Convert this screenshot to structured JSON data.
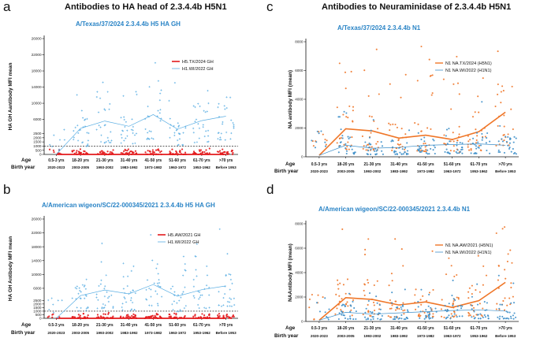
{
  "figure": {
    "heading_left": "Antibodies to HA head of 2.3.4.4b H5N1",
    "heading_right": "Antibodies to  Neuraminidase of 2.3.4.4b H5N1",
    "row_label_age": "Age",
    "row_label_birth": "Birth year",
    "age_groups": [
      "0.5-3 yrs",
      "18-20 yrs",
      "21-30 yrs",
      "31-40 yrs",
      "41-50 yrs",
      "51-60 yrs",
      "61-70 yrs",
      ">70 yrs"
    ],
    "birth_years": [
      "2020-2023",
      "2003-2005",
      "1993-2002",
      "1983-1992",
      "1973-1982",
      "1963-1972",
      "1953-1962",
      "Before 1953"
    ]
  },
  "colors": {
    "red": "#e31a1c",
    "blue": "#5aaee3",
    "orange": "#ef7628",
    "steel": "#3d8fc9",
    "dashed": "#000000"
  },
  "chart_data": [
    {
      "panel": "a",
      "type": "scatter",
      "title": "A/Texas/37/2024 2.3.4.4b H5 HA GH",
      "ylabel": "HA GH Aantibody MFI mean",
      "ytick_labels": [
        "0",
        "500",
        "1000",
        "1500",
        "2000",
        "2500",
        "6000",
        "10000",
        "14000",
        "18000",
        "22000",
        "26000"
      ],
      "ylim": [
        0,
        26000
      ],
      "threshold": 1000,
      "series": [
        {
          "name": "H5.TX/2024 GH",
          "color": "red",
          "mean_line": [
            0,
            0,
            0,
            0,
            0,
            0,
            0,
            0
          ],
          "spread": 800
        },
        {
          "name": "H1.WI/2022 GH",
          "color": "blue",
          "mean_line": [
            0,
            3800,
            5600,
            4300,
            7200,
            3600,
            5700,
            6800
          ],
          "spread": 14000
        }
      ]
    },
    {
      "panel": "b",
      "type": "scatter",
      "title": "A/American wigeon/SC/22-000345/2021 2.3.4.4b H5 HA GH",
      "ylabel": "HA GH Antibody MFI mean",
      "ytick_labels": [
        "0",
        "500",
        "1000",
        "1500",
        "2000",
        "2500",
        "6000",
        "10000",
        "14000",
        "18000",
        "22000",
        "26000"
      ],
      "ylim": [
        0,
        26000
      ],
      "threshold": 1000,
      "series": [
        {
          "name": "H5.AW/2021 GH",
          "color": "red",
          "mean_line": [
            0,
            0,
            0,
            0,
            0,
            0,
            0,
            0
          ],
          "spread": 800
        },
        {
          "name": "H1.WI/2022 GH",
          "color": "blue",
          "mean_line": [
            0,
            3900,
            5500,
            4400,
            7100,
            3700,
            5600,
            6700
          ],
          "spread": 14000
        }
      ]
    },
    {
      "panel": "c",
      "type": "scatter",
      "title": "A/Texas/37/2024 2.3.4.4b N1",
      "ylabel": "NA antibody MFI (mean)",
      "ytick_labels": [
        "0",
        "2000",
        "4000",
        "6000",
        "8000"
      ],
      "ylim": [
        0,
        8000
      ],
      "series": [
        {
          "name": "N1 NA.TX/2024 (H5N1)",
          "color": "orange",
          "mean_line": [
            100,
            1950,
            1800,
            1300,
            1500,
            1200,
            1750,
            3100
          ],
          "spread": 5500
        },
        {
          "name": "N1 NA.WI/2022 (H1N1)",
          "color": "steel",
          "mean_line": [
            100,
            800,
            600,
            650,
            800,
            850,
            900,
            800
          ],
          "spread": 2200
        }
      ]
    },
    {
      "panel": "d",
      "type": "scatter",
      "title": "A/American wigeon/SC/22-000345/2021 2.3.4.4b N1",
      "ylabel": "NAAntibody MFI (mean)",
      "ytick_labels": [
        "0",
        "2000",
        "4000",
        "6000",
        "8000"
      ],
      "ylim": [
        0,
        8000
      ],
      "series": [
        {
          "name": "N1 NA.AW/2021 (H5N1)",
          "color": "orange",
          "mean_line": [
            100,
            1950,
            1800,
            1350,
            1600,
            1150,
            1700,
            3200
          ],
          "spread": 5500
        },
        {
          "name": "N1 NA.WI/2022 (H1N1)",
          "color": "steel",
          "mean_line": [
            100,
            750,
            600,
            700,
            800,
            900,
            950,
            850
          ],
          "spread": 2200
        }
      ]
    }
  ]
}
